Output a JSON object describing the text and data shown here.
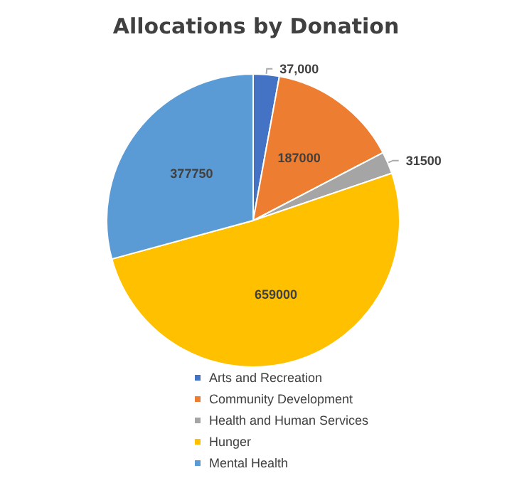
{
  "chart_data": {
    "type": "pie",
    "title": "Allocations by Donation",
    "categories": [
      "Arts and Recreation",
      "Community Development",
      "Health and Human Services",
      "Hunger",
      "Mental Health"
    ],
    "values": [
      37000,
      187000,
      31500,
      659000,
      377750
    ],
    "value_labels": [
      "37,000",
      "187000",
      "31500",
      "659000",
      "377750"
    ],
    "colors": [
      "#4472c4",
      "#ed7d31",
      "#a5a5a5",
      "#ffc000",
      "#5b9bd5"
    ],
    "legend": "bottom"
  }
}
